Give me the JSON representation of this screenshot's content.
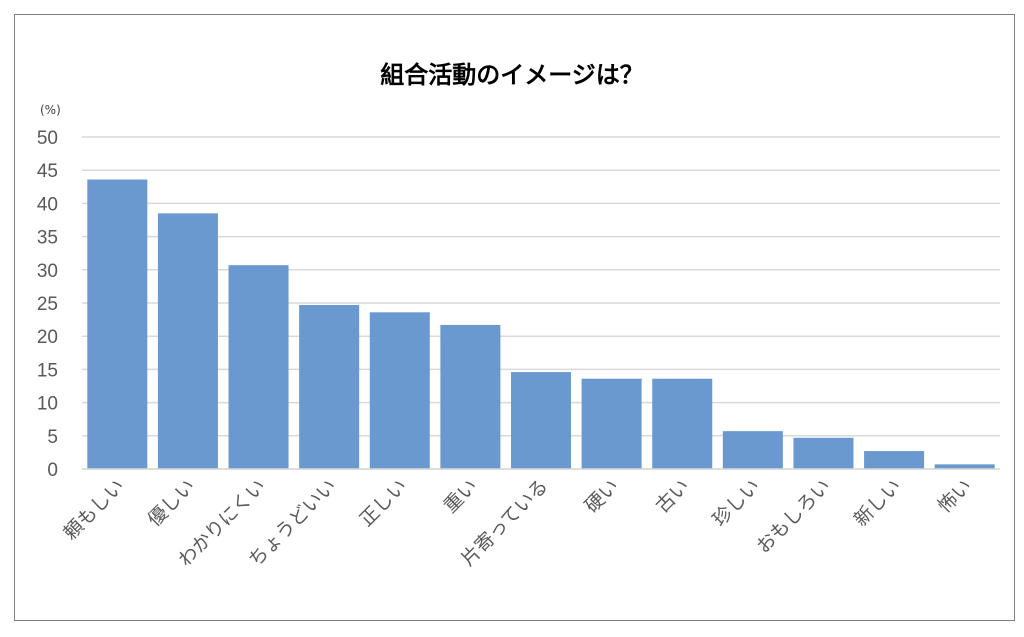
{
  "chart_data": {
    "type": "bar",
    "title": "組合活動のイメージは？",
    "ylabel": "(%)",
    "xlabel": "",
    "ylim": [
      0,
      50
    ],
    "yticks": [
      0,
      5,
      10,
      15,
      20,
      25,
      30,
      35,
      40,
      45,
      50
    ],
    "grid": true,
    "categories": [
      "頼もしい",
      "優しい",
      "わかりにくい",
      "ちょうどいい",
      "正しい",
      "重い",
      "片寄っている",
      "硬い",
      "古い",
      "珍しい",
      "おもしろい",
      "新しい",
      "怖い"
    ],
    "values": [
      43.6,
      38.5,
      30.7,
      24.7,
      23.6,
      21.7,
      14.6,
      13.6,
      13.6,
      5.7,
      4.7,
      2.7,
      0.7
    ],
    "bar_color": "#6a99d0",
    "grid_color": "#d9d9d9"
  }
}
